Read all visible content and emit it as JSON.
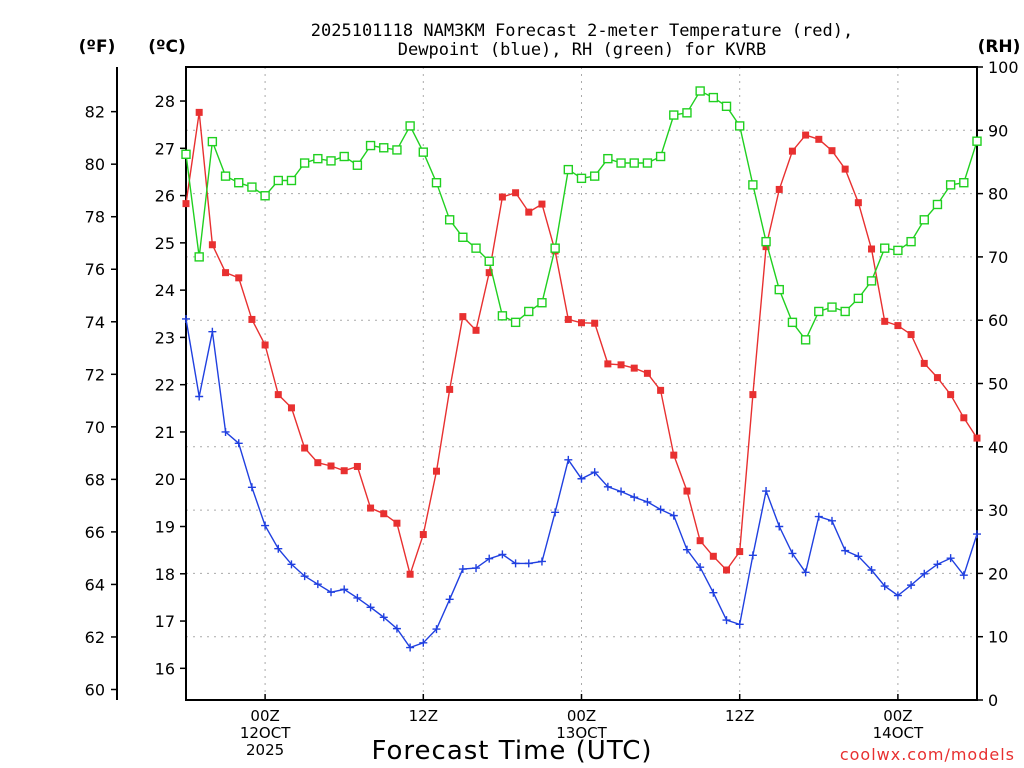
{
  "title": {
    "line1": "2025101118 NAM3KM Forecast 2-meter Temperature (red),",
    "line2": "Dewpoint (blue), RH (green) for KVRB"
  },
  "units": {
    "fahrenheit": "(ºF)",
    "celsius": "(ºC)",
    "rh": "(RH)"
  },
  "credit": "coolwx.com/models",
  "colors": {
    "temperature": "#e83030",
    "dewpoint": "#2040e0",
    "rh": "#20d020",
    "grid": "#aaaaaa"
  },
  "chart_data": {
    "type": "line",
    "title": "2025101118 NAM3KM Forecast 2-meter Temperature (red), Dewpoint (blue), RH (green) for KVRB",
    "xlabel": "Forecast Time (UTC)",
    "x": {
      "start_hour": 18,
      "step_hours": 1,
      "range_hours": [
        18,
        78
      ],
      "grid": true
    },
    "x_ticks": [
      {
        "hour": 24,
        "lines": [
          "00Z",
          "12OCT",
          "2025"
        ]
      },
      {
        "hour": 36,
        "lines": [
          "12Z"
        ]
      },
      {
        "hour": 48,
        "lines": [
          "00Z",
          "13OCT"
        ]
      },
      {
        "hour": 60,
        "lines": [
          "12Z"
        ]
      },
      {
        "hour": 72,
        "lines": [
          "00Z",
          "14OCT"
        ]
      }
    ],
    "axes": {
      "fahrenheit": {
        "label": "(ºF)",
        "ticks": [
          "60",
          "62",
          "64",
          "66",
          "68",
          "70",
          "72",
          "74",
          "76",
          "78",
          "80",
          "82"
        ],
        "range": [
          59.6,
          83.7
        ]
      },
      "celsius": {
        "label": "(ºC)",
        "ticks": [
          "16",
          "17",
          "18",
          "19",
          "20",
          "21",
          "22",
          "23",
          "24",
          "25",
          "26",
          "27",
          "28"
        ],
        "range": [
          15.33,
          28.72
        ]
      },
      "rh": {
        "label": "(RH)",
        "ticks": [
          "0",
          "10",
          "20",
          "30",
          "40",
          "50",
          "60",
          "70",
          "80",
          "90",
          "100"
        ],
        "range": [
          0,
          100
        ],
        "grid": true
      }
    },
    "series": [
      {
        "name": "Temperature",
        "axis": "celsius",
        "marker": "filled-square",
        "color": "#e83030",
        "values": [
          25.83,
          27.76,
          24.96,
          24.37,
          24.26,
          23.38,
          22.84,
          21.79,
          21.51,
          20.66,
          20.35,
          20.28,
          20.18,
          20.27,
          19.39,
          19.27,
          19.07,
          17.99,
          18.83,
          20.17,
          21.9,
          23.44,
          23.15,
          24.37,
          25.97,
          26.06,
          25.65,
          25.82,
          24.83,
          23.38,
          23.31,
          23.3,
          22.44,
          22.42,
          22.35,
          22.24,
          21.88,
          20.51,
          19.75,
          18.7,
          18.37,
          18.08,
          18.47,
          21.79,
          24.92,
          26.13,
          26.94,
          27.28,
          27.19,
          26.95,
          26.56,
          25.85,
          24.87,
          23.34,
          23.25,
          23.06,
          22.45,
          22.15,
          21.79,
          21.3,
          20.87
        ]
      },
      {
        "name": "Dewpoint",
        "axis": "celsius",
        "marker": "plus",
        "color": "#2040e0",
        "values": [
          23.39,
          21.75,
          23.12,
          21.0,
          20.76,
          19.83,
          19.02,
          18.53,
          18.2,
          17.95,
          17.78,
          17.61,
          17.67,
          17.49,
          17.29,
          17.08,
          16.84,
          16.44,
          16.54,
          16.83,
          17.46,
          18.1,
          18.12,
          18.32,
          18.41,
          18.22,
          18.22,
          18.26,
          19.3,
          20.41,
          20.01,
          20.15,
          19.84,
          19.74,
          19.62,
          19.52,
          19.36,
          19.23,
          18.51,
          18.14,
          17.6,
          17.02,
          16.93,
          18.39,
          19.75,
          19.0,
          18.43,
          18.03,
          19.21,
          19.12,
          18.49,
          18.37,
          18.08,
          17.74,
          17.54,
          17.76,
          18.0,
          18.2,
          18.33,
          17.97,
          18.84
        ]
      },
      {
        "name": "RH",
        "axis": "rh",
        "marker": "open-square",
        "color": "#20d020",
        "values": [
          86.21,
          70.0,
          88.21,
          82.76,
          81.72,
          81.03,
          79.66,
          82.07,
          82.07,
          84.83,
          85.52,
          85.17,
          85.86,
          84.48,
          87.59,
          87.24,
          86.9,
          90.69,
          86.55,
          81.72,
          75.86,
          73.1,
          71.38,
          69.31,
          60.69,
          59.66,
          61.38,
          62.76,
          71.38,
          83.79,
          82.41,
          82.76,
          85.52,
          84.83,
          84.83,
          84.83,
          85.86,
          92.41,
          92.76,
          96.21,
          95.17,
          93.79,
          90.69,
          81.38,
          72.41,
          64.83,
          59.66,
          56.9,
          61.38,
          62.07,
          61.38,
          63.45,
          66.21,
          71.38,
          71.03,
          72.41,
          75.86,
          78.28,
          81.38,
          81.72,
          88.28
        ]
      }
    ]
  }
}
